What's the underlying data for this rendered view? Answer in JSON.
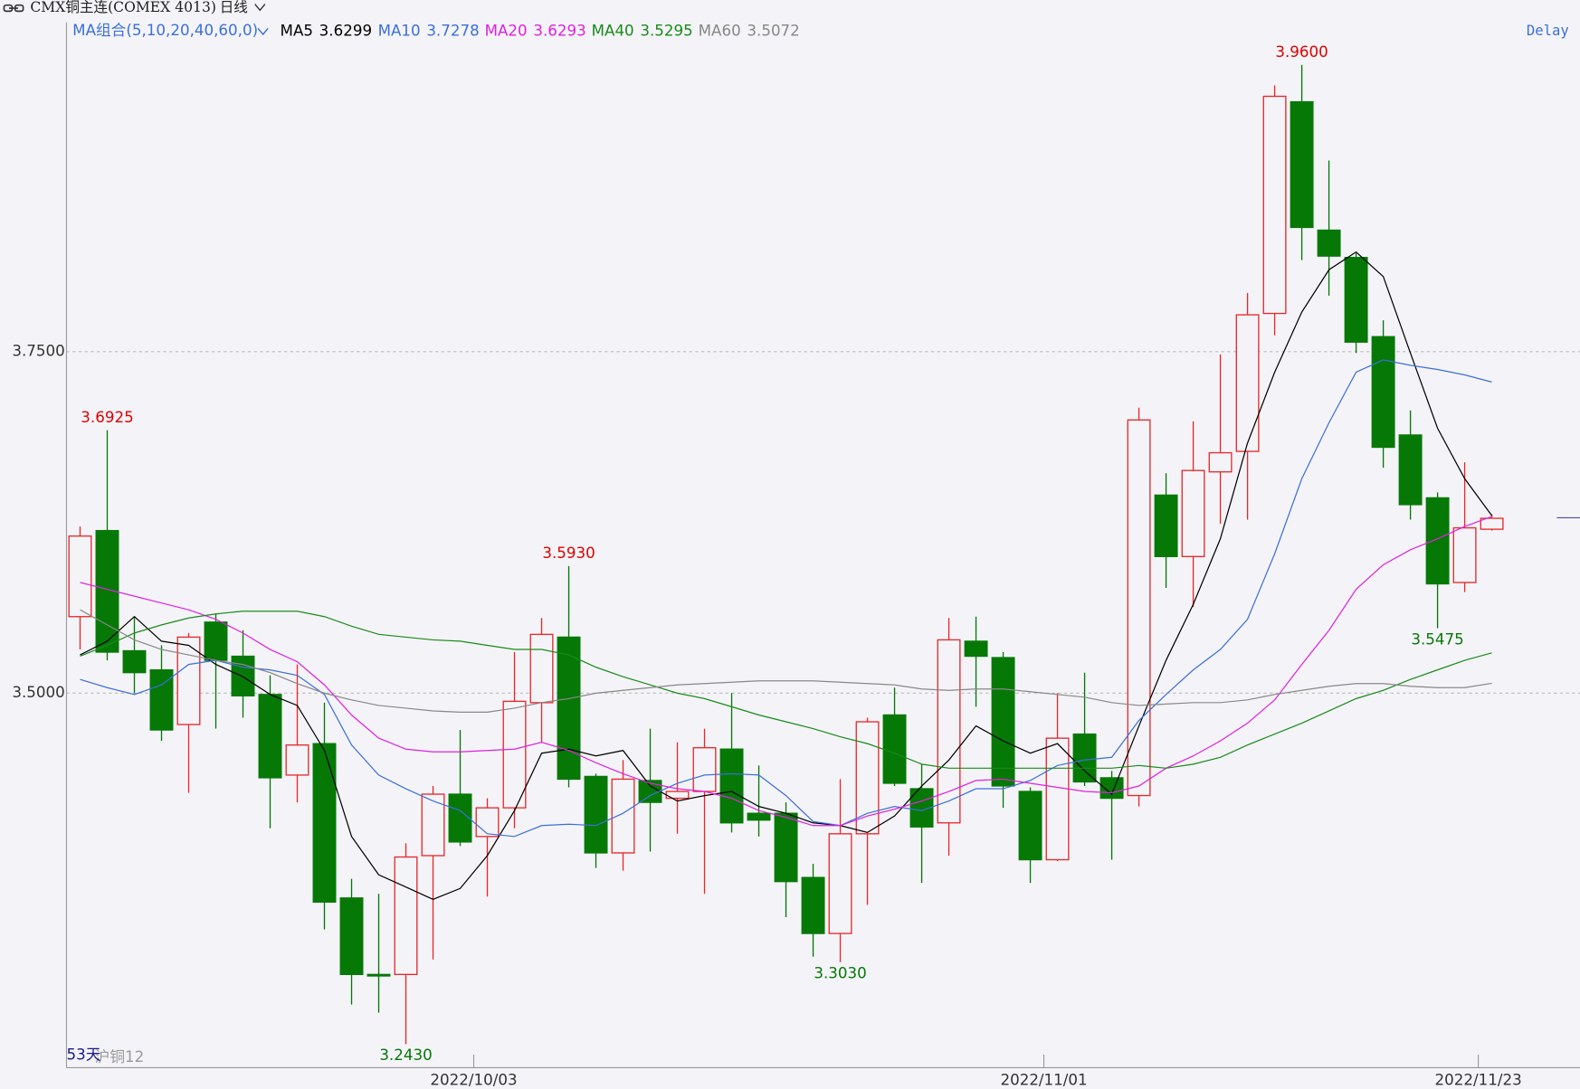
{
  "header": {
    "title": "CMX铜主连(COMEX 4013)",
    "period": "日线",
    "status": "Delay"
  },
  "footer": {
    "days": "53天",
    "contract": "沪铜12"
  },
  "chart_data": {
    "type": "candlestick",
    "legend_title": "MA组合(5,10,20,40,60,0)",
    "up_color": "#e8282b",
    "down_color": "#067806",
    "categories": [
      null,
      null,
      null,
      null,
      null,
      null,
      null,
      null,
      null,
      null,
      null,
      null,
      null,
      null,
      null,
      "2022/10/03",
      null,
      null,
      null,
      null,
      null,
      null,
      null,
      null,
      null,
      null,
      null,
      null,
      null,
      null,
      null,
      null,
      null,
      null,
      null,
      null,
      "2022/11/01",
      null,
      null,
      null,
      null,
      null,
      null,
      null,
      null,
      null,
      null,
      null,
      null,
      null,
      null,
      null,
      "2022/11/23"
    ],
    "open": [
      3.556,
      3.619,
      3.531,
      3.517,
      3.477,
      3.552,
      3.527,
      3.499,
      3.44,
      3.463,
      3.35,
      3.294,
      3.294,
      3.381,
      3.426,
      3.395,
      3.416,
      3.493,
      3.541,
      3.439,
      3.383,
      3.436,
      3.423,
      3.428,
      3.459,
      3.412,
      3.412,
      3.365,
      3.324,
      3.397,
      3.484,
      3.43,
      3.405,
      3.538,
      3.526,
      3.428,
      3.378,
      3.47,
      3.438,
      3.425,
      3.645,
      3.6,
      3.662,
      3.677,
      3.778,
      3.933,
      3.839,
      3.819,
      3.761,
      3.689,
      3.643,
      3.581,
      3.62
    ],
    "high": [
      3.622,
      3.6925,
      3.556,
      3.535,
      3.544,
      3.558,
      3.546,
      3.513,
      3.521,
      3.493,
      3.364,
      3.353,
      3.39,
      3.432,
      3.473,
      3.423,
      3.53,
      3.555,
      3.593,
      3.441,
      3.451,
      3.474,
      3.464,
      3.474,
      3.5,
      3.447,
      3.42,
      3.375,
      3.437,
      3.482,
      3.504,
      3.448,
      3.555,
      3.556,
      3.53,
      3.431,
      3.5,
      3.515,
      3.443,
      3.709,
      3.661,
      3.699,
      3.748,
      3.793,
      3.945,
      3.96,
      3.89,
      3.822,
      3.773,
      3.707,
      3.647,
      3.669,
      3.631
    ],
    "low": [
      3.532,
      3.524,
      3.5,
      3.465,
      3.427,
      3.474,
      3.482,
      3.401,
      3.42,
      3.327,
      3.272,
      3.266,
      3.243,
      3.305,
      3.388,
      3.351,
      3.401,
      3.464,
      3.431,
      3.372,
      3.37,
      3.384,
      3.397,
      3.353,
      3.398,
      3.395,
      3.336,
      3.307,
      3.303,
      3.345,
      3.432,
      3.361,
      3.381,
      3.49,
      3.416,
      3.361,
      3.377,
      3.432,
      3.378,
      3.417,
      3.577,
      3.563,
      3.624,
      3.627,
      3.762,
      3.817,
      3.791,
      3.749,
      3.665,
      3.627,
      3.5475,
      3.574,
      3.619
    ],
    "close": [
      3.615,
      3.53,
      3.515,
      3.473,
      3.541,
      3.524,
      3.498,
      3.438,
      3.462,
      3.347,
      3.294,
      3.293,
      3.38,
      3.426,
      3.391,
      3.416,
      3.494,
      3.543,
      3.437,
      3.383,
      3.437,
      3.42,
      3.428,
      3.46,
      3.405,
      3.407,
      3.362,
      3.324,
      3.397,
      3.479,
      3.434,
      3.402,
      3.539,
      3.527,
      3.432,
      3.378,
      3.467,
      3.435,
      3.423,
      3.7,
      3.6,
      3.663,
      3.676,
      3.777,
      3.937,
      3.841,
      3.82,
      3.757,
      3.68,
      3.638,
      3.58,
      3.621,
      3.628
    ],
    "high_labels": [
      null,
      "3.6925",
      null,
      null,
      null,
      null,
      null,
      null,
      null,
      null,
      null,
      null,
      null,
      null,
      null,
      null,
      null,
      null,
      "3.5930",
      null,
      null,
      null,
      null,
      null,
      null,
      null,
      null,
      null,
      null,
      null,
      null,
      null,
      null,
      null,
      null,
      null,
      null,
      null,
      null,
      null,
      null,
      null,
      null,
      null,
      null,
      "3.9600",
      null,
      null,
      null,
      null,
      null,
      null,
      null
    ],
    "low_labels": [
      null,
      null,
      null,
      null,
      null,
      null,
      null,
      null,
      null,
      null,
      null,
      null,
      "3.2430",
      null,
      null,
      null,
      null,
      null,
      null,
      null,
      null,
      null,
      null,
      null,
      null,
      null,
      null,
      null,
      "3.3030",
      null,
      null,
      null,
      null,
      null,
      null,
      null,
      null,
      null,
      null,
      null,
      null,
      null,
      null,
      null,
      null,
      null,
      null,
      null,
      null,
      null,
      "3.5475",
      null,
      null
    ],
    "series": [
      {
        "name": "MA5",
        "color": "#000000",
        "values": [
          3.528,
          3.538,
          3.556,
          3.538,
          3.535,
          3.521,
          3.512,
          3.499,
          3.491,
          3.458,
          3.395,
          3.367,
          3.358,
          3.349,
          3.357,
          3.381,
          3.414,
          3.456,
          3.459,
          3.454,
          3.458,
          3.432,
          3.421,
          3.425,
          3.428,
          3.417,
          3.412,
          3.405,
          3.403,
          3.398,
          3.41,
          3.432,
          3.451,
          3.476,
          3.465,
          3.456,
          3.463,
          3.443,
          3.426,
          3.476,
          3.524,
          3.565,
          3.613,
          3.683,
          3.735,
          3.779,
          3.81,
          3.823,
          3.805,
          3.749,
          3.694,
          3.657,
          3.6299
        ]
      },
      {
        "name": "MA10",
        "color": "#3c6fdc",
        "values": [
          3.51,
          3.504,
          3.499,
          3.506,
          3.521,
          3.524,
          3.519,
          3.517,
          3.513,
          3.499,
          3.462,
          3.44,
          3.43,
          3.421,
          3.414,
          3.397,
          3.395,
          3.403,
          3.404,
          3.403,
          3.412,
          3.425,
          3.434,
          3.44,
          3.441,
          3.44,
          3.425,
          3.406,
          3.403,
          3.412,
          3.417,
          3.414,
          3.421,
          3.43,
          3.43,
          3.436,
          3.447,
          3.451,
          3.453,
          3.48,
          3.499,
          3.517,
          3.532,
          3.554,
          3.602,
          3.657,
          3.698,
          3.735,
          3.744,
          3.74,
          3.737,
          3.733,
          3.7278
        ]
      },
      {
        "name": "MA20",
        "color": "#e020e0",
        "values": [
          3.581,
          3.576,
          3.571,
          3.566,
          3.561,
          3.554,
          3.544,
          3.532,
          3.523,
          3.506,
          3.484,
          3.467,
          3.459,
          3.457,
          3.457,
          3.458,
          3.459,
          3.464,
          3.458,
          3.449,
          3.441,
          3.434,
          3.43,
          3.428,
          3.423,
          3.414,
          3.409,
          3.403,
          3.403,
          3.41,
          3.415,
          3.421,
          3.428,
          3.436,
          3.437,
          3.434,
          3.431,
          3.428,
          3.427,
          3.432,
          3.445,
          3.454,
          3.465,
          3.478,
          3.495,
          3.521,
          3.546,
          3.576,
          3.594,
          3.605,
          3.613,
          3.622,
          3.6293
        ]
      },
      {
        "name": "MA40",
        "color": "#1a8a1a",
        "values": [
          3.527,
          3.535,
          3.544,
          3.55,
          3.555,
          3.558,
          3.56,
          3.56,
          3.56,
          3.556,
          3.549,
          3.543,
          3.541,
          3.539,
          3.538,
          3.535,
          3.532,
          3.532,
          3.528,
          3.519,
          3.512,
          3.506,
          3.5,
          3.496,
          3.49,
          3.484,
          3.479,
          3.474,
          3.468,
          3.463,
          3.456,
          3.448,
          3.445,
          3.445,
          3.445,
          3.445,
          3.445,
          3.445,
          3.445,
          3.447,
          3.445,
          3.448,
          3.453,
          3.462,
          3.47,
          3.478,
          3.487,
          3.496,
          3.502,
          3.51,
          3.517,
          3.524,
          3.5295
        ]
      },
      {
        "name": "MA60",
        "color": "#888888",
        "values": [
          3.561,
          3.55,
          3.539,
          3.532,
          3.528,
          3.524,
          3.521,
          3.515,
          3.507,
          3.5,
          3.495,
          3.491,
          3.489,
          3.487,
          3.486,
          3.486,
          3.489,
          3.493,
          3.496,
          3.5,
          3.502,
          3.504,
          3.506,
          3.507,
          3.508,
          3.509,
          3.509,
          3.509,
          3.508,
          3.507,
          3.506,
          3.503,
          3.502,
          3.503,
          3.503,
          3.501,
          3.499,
          3.497,
          3.493,
          3.491,
          3.492,
          3.493,
          3.493,
          3.495,
          3.499,
          3.502,
          3.505,
          3.507,
          3.507,
          3.505,
          3.504,
          3.504,
          3.5072
        ]
      }
    ],
    "ylim": [
      3.2257,
      3.9912
    ],
    "yticks": [
      {
        "value": 3.5,
        "label": "3.5000"
      },
      {
        "value": 3.75,
        "label": "3.7500"
      }
    ],
    "grid": true
  }
}
